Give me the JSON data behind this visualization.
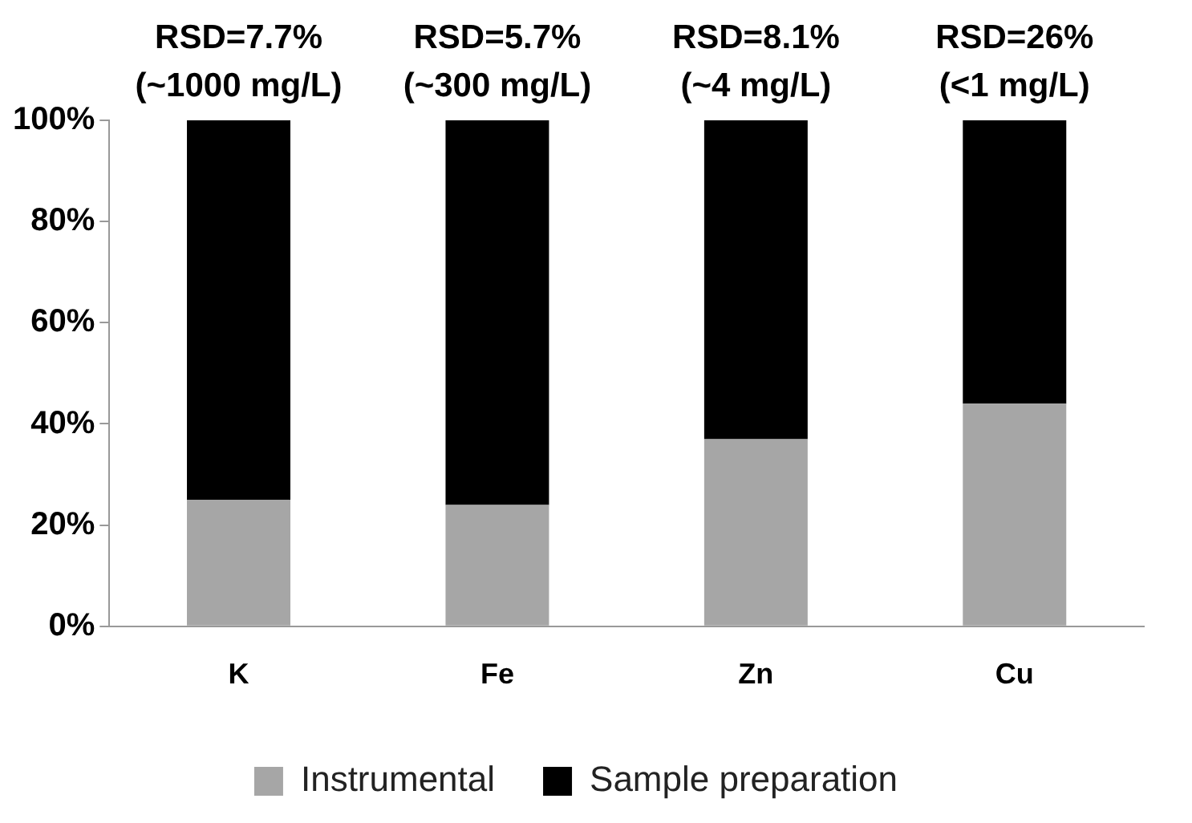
{
  "chart_data": {
    "type": "bar",
    "stacked": true,
    "categories": [
      "K",
      "Fe",
      "Zn",
      "Cu"
    ],
    "series": [
      {
        "name": "Instrumental",
        "color": "#a6a6a6",
        "values": [
          25,
          24,
          37,
          44
        ]
      },
      {
        "name": "Sample preparation",
        "color": "#000000",
        "values": [
          75,
          76,
          63,
          56
        ]
      }
    ],
    "ylim": [
      0,
      100
    ],
    "yticks": [
      {
        "value": 0,
        "label": "0%"
      },
      {
        "value": 20,
        "label": "20%"
      },
      {
        "value": 40,
        "label": "40%"
      },
      {
        "value": 60,
        "label": "60%"
      },
      {
        "value": 80,
        "label": "80%"
      },
      {
        "value": 100,
        "label": "100%"
      }
    ],
    "annotations": [
      "RSD=7.7%\n(~1000 mg/L)",
      "RSD=5.7%\n(~300 mg/L)",
      "RSD=8.1%\n(~4 mg/L)",
      "RSD=26%\n(<1 mg/L)"
    ],
    "grid": false,
    "legend": "bottom"
  }
}
